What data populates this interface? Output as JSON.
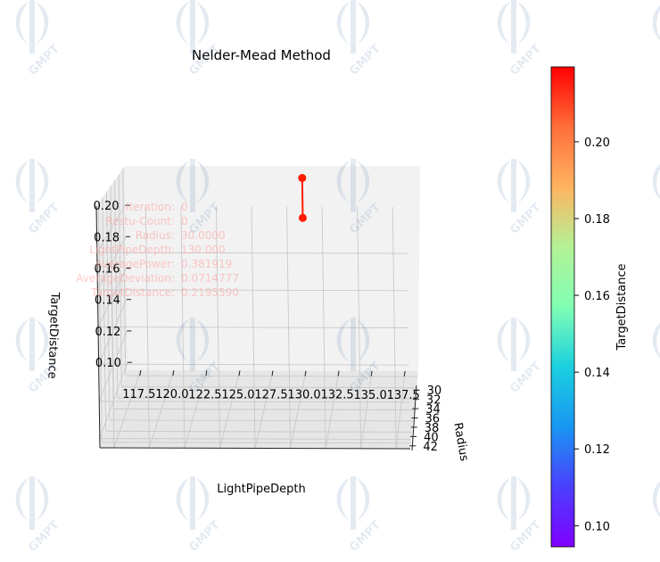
{
  "chart_data": {
    "type": "scatter3d",
    "title": "Nelder-Mead Method",
    "xlabel": "LightPipeDepth",
    "ylabel": "Radius",
    "zlabel": "TargetDistance",
    "xlim": [
      116.5,
      138.5
    ],
    "ylim": [
      29,
      43
    ],
    "zlim": [
      0.095,
      0.225
    ],
    "xticks": [
      "117.5",
      "120.0",
      "122.5",
      "125.0",
      "127.5",
      "130.0",
      "132.5",
      "135.0",
      "137.5"
    ],
    "yticks": [
      "30",
      "32",
      "34",
      "36",
      "38",
      "40",
      "42"
    ],
    "zticks": [
      "0.10",
      "0.12",
      "0.14",
      "0.16",
      "0.18",
      "0.20"
    ],
    "points": [
      {
        "x": 130.0,
        "y": 30.0,
        "z": 0.219559
      },
      {
        "x": 130.0,
        "y": 30.0,
        "z": 0.1945
      }
    ],
    "line_color": "#ff1a00",
    "grid": true,
    "annotation": [
      {
        "label": "Iteration:",
        "value": "0"
      },
      {
        "label": "Restu-Count:",
        "value": "0"
      },
      {
        "label": "Radius:",
        "value": "30.0000"
      },
      {
        "label": "LightPipeDepth:",
        "value": "130.000"
      },
      {
        "label": "AveragePower:",
        "value": "0.381919"
      },
      {
        "label": "AverageDeviation:",
        "value": "0.0714777"
      },
      {
        "label": "TargetDistance:",
        "value": "0.2195590"
      }
    ],
    "colorbar": {
      "label": "TargetDistance",
      "min": 0.0945,
      "max": 0.2195,
      "ticks": [
        "0.10",
        "0.12",
        "0.14",
        "0.16",
        "0.18",
        "0.20"
      ],
      "colormap": "rainbow"
    }
  },
  "watermark": "GMPT"
}
